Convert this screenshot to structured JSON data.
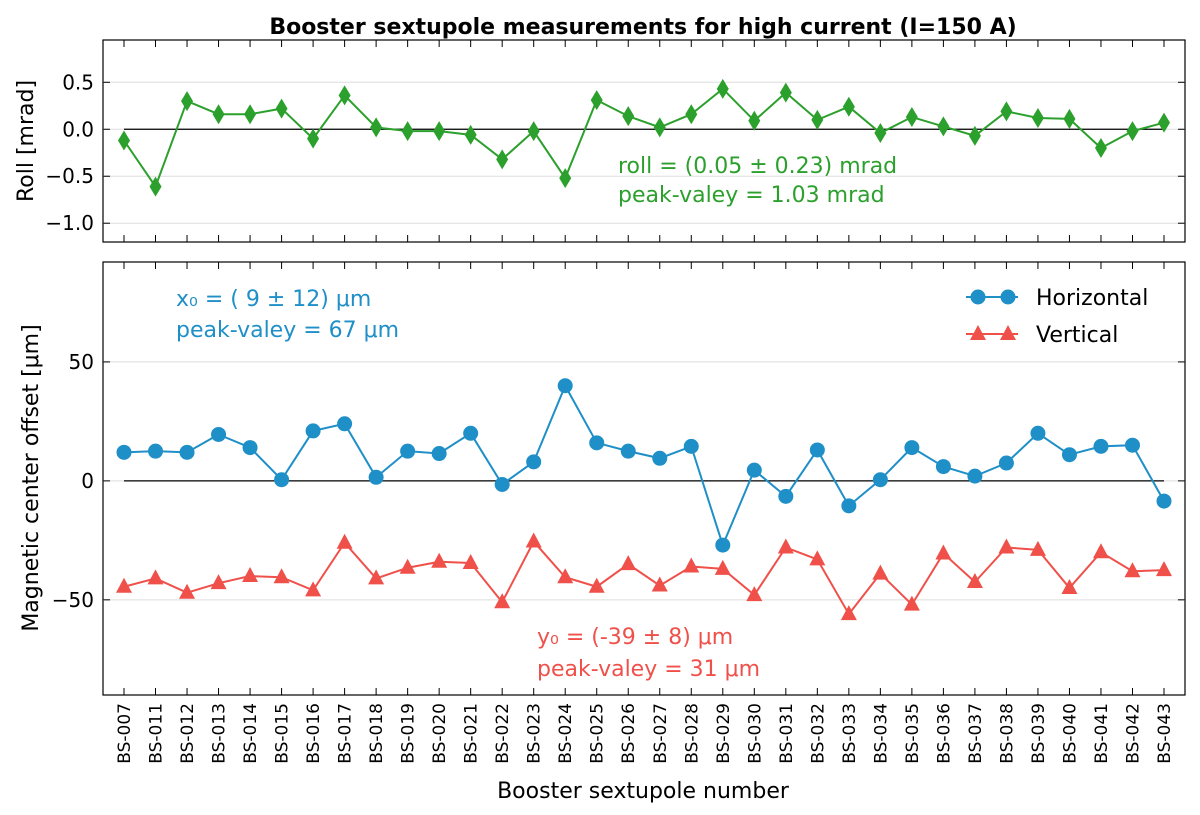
{
  "title": "Booster sextupole measurements for high current (I=150 A)",
  "colors": {
    "roll": "#2ca02c",
    "horizontal": "#1f8fc8",
    "vertical": "#f0504a",
    "axis": "#000000",
    "grid": "#dddddd"
  },
  "chart_data": [
    {
      "type": "line",
      "ylabel": "Roll [mrad]",
      "ylim": [
        -1.2,
        0.95
      ],
      "yticks": [
        0.5,
        0.0,
        -0.5,
        -1.0
      ],
      "ytick_labels": [
        "0.5",
        "0.0",
        "−0.5",
        "−1.0"
      ],
      "grid": true,
      "zero_line": true,
      "series": [
        {
          "name": "",
          "color_key": "roll",
          "marker": "diamond",
          "values": [
            -0.12,
            -0.61,
            0.3,
            0.16,
            0.16,
            0.22,
            -0.1,
            0.36,
            0.02,
            -0.02,
            -0.02,
            -0.06,
            -0.32,
            -0.02,
            -0.52,
            0.31,
            0.14,
            0.02,
            0.16,
            0.43,
            0.09,
            0.39,
            0.1,
            0.24,
            -0.04,
            0.13,
            0.03,
            -0.07,
            0.19,
            0.12,
            0.11,
            -0.2,
            -0.02,
            0.07
          ]
        }
      ],
      "annotations": [
        {
          "lines": [
            "roll = (0.05 ± 0.23) mrad",
            "peak-valey = 1.03 mrad"
          ],
          "color_key": "roll"
        }
      ]
    },
    {
      "type": "line",
      "ylabel": "Magnetic center offset [μm]",
      "xlabel": "Booster sextupole number",
      "ylim": [
        -90,
        92
      ],
      "yticks": [
        50,
        0,
        -50
      ],
      "ytick_labels": [
        "50",
        "0",
        "−50"
      ],
      "grid": true,
      "zero_line": true,
      "legend": "top-right",
      "categories": [
        "BS-007",
        "BS-011",
        "BS-012",
        "BS-013",
        "BS-014",
        "BS-015",
        "BS-016",
        "BS-017",
        "BS-018",
        "BS-019",
        "BS-020",
        "BS-021",
        "BS-022",
        "BS-023",
        "BS-024",
        "BS-025",
        "BS-026",
        "BS-027",
        "BS-028",
        "BS-029",
        "BS-030",
        "BS-031",
        "BS-032",
        "BS-033",
        "BS-034",
        "BS-035",
        "BS-036",
        "BS-037",
        "BS-038",
        "BS-039",
        "BS-040",
        "BS-041",
        "BS-042",
        "BS-043"
      ],
      "series": [
        {
          "name": "Horizontal",
          "color_key": "horizontal",
          "marker": "circle",
          "values": [
            12,
            12.5,
            12,
            19.5,
            14,
            0.5,
            21,
            24,
            1.5,
            12.5,
            11.5,
            20,
            -1.5,
            8,
            40,
            16,
            12.5,
            9.5,
            14.5,
            -27,
            4.5,
            -6.5,
            13,
            -10.5,
            0.5,
            14,
            6,
            2,
            7.5,
            20,
            11,
            14.5,
            15,
            -8.5
          ]
        },
        {
          "name": "Vertical",
          "color_key": "vertical",
          "marker": "triangle",
          "values": [
            -44.5,
            -41,
            -47,
            -43,
            -40,
            -40.5,
            -46,
            -26,
            -41,
            -36.5,
            -34,
            -34.5,
            -51,
            -25.5,
            -40.5,
            -44.5,
            -35,
            -44,
            -36,
            -37,
            -48,
            -28,
            -33,
            -56,
            -39,
            -52,
            -30.5,
            -42.5,
            -28,
            -29,
            -45,
            -30,
            -38,
            -37.5
          ]
        }
      ],
      "annotations": [
        {
          "lines": [
            "x₀ = ( 9 ± 12) μm",
            "peak-valey = 67 μm"
          ],
          "color_key": "horizontal"
        },
        {
          "lines": [
            "y₀ = (-39 ±  8) μm",
            "peak-valey = 31 μm"
          ],
          "color_key": "vertical"
        }
      ]
    }
  ]
}
